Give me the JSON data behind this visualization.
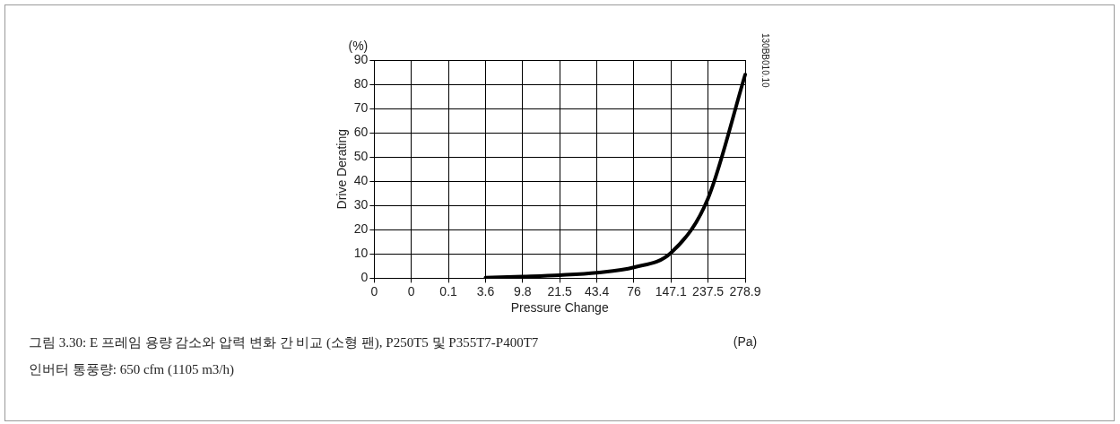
{
  "chart_data": {
    "type": "line",
    "ylabel": "Drive Derating",
    "xlabel": "Pressure Change",
    "categories": [
      "0",
      "0",
      "0.1",
      "3.6",
      "9.8",
      "21.5",
      "43.4",
      "76",
      "147.1",
      "237.5",
      "278.9"
    ],
    "series": [
      {
        "color": "#000000",
        "values": [
          null,
          null,
          null,
          0.2,
          0.7,
          1.3,
          2.3,
          4.5,
          10.5,
          33,
          84
        ]
      }
    ],
    "ylim": [
      0,
      90
    ],
    "yticks": [
      0,
      10,
      20,
      30,
      40,
      50,
      60,
      70,
      80,
      90
    ],
    "grid": true,
    "legend": false,
    "marker": "none",
    "line_style": "solid",
    "annotations": [
      "(%)",
      "(Pa)",
      "130BB010.10",
      "그림 3.30: E 프레임 용량 감소와 압력 변화 간 비교 (소형 팬), P250T5 및 P355T7-P400T7",
      "인버터 통풍량: 650 cfm (1105 m3/h)"
    ]
  }
}
